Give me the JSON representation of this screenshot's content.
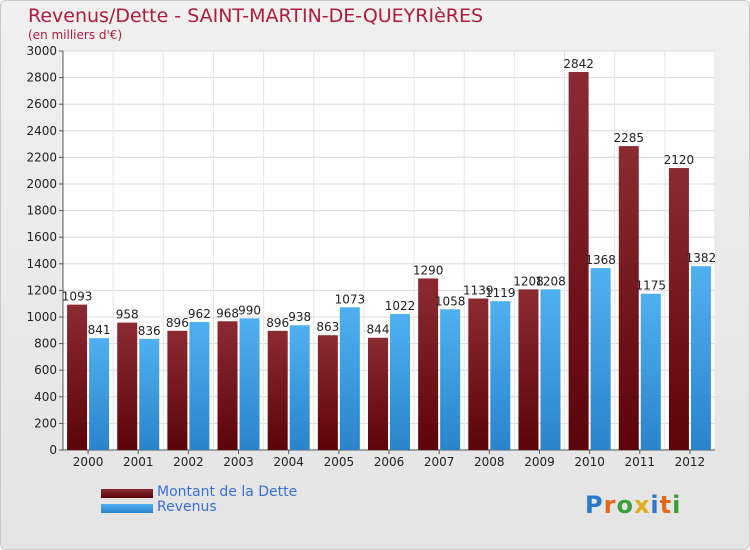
{
  "page": {
    "title": "Revenus/Dette - SAINT-MARTIN-DE-QUEYRIèRES",
    "subtitle": "(en milliers d'€)"
  },
  "legend": [
    {
      "label": "Montant de la Dette",
      "color": "#6b0e14"
    },
    {
      "label": "Revenus",
      "color": "#3d9ee6"
    }
  ],
  "logo": {
    "text": "Proxiti",
    "letters": [
      {
        "ch": "P",
        "color": "#2a78c8"
      },
      {
        "ch": "r",
        "color": "#e06a1a"
      },
      {
        "ch": "o",
        "color": "#3aa03a"
      },
      {
        "ch": "x",
        "color": "#e0b01a"
      },
      {
        "ch": "i",
        "color": "#2a78c8"
      },
      {
        "ch": "t",
        "color": "#e06a1a"
      },
      {
        "ch": "i",
        "color": "#3aa03a"
      }
    ]
  },
  "chart_data": {
    "type": "bar",
    "title": "Revenus/Dette - SAINT-MARTIN-DE-QUEYRIèRES",
    "subtitle": "(en milliers d'€)",
    "xlabel": "",
    "ylabel": "",
    "categories": [
      "2000",
      "2001",
      "2002",
      "2003",
      "2004",
      "2005",
      "2006",
      "2007",
      "2008",
      "2009",
      "2010",
      "2011",
      "2012"
    ],
    "series": [
      {
        "name": "Montant de la Dette",
        "color": "#6b0e14",
        "values": [
          1093,
          958,
          896,
          968,
          896,
          863,
          844,
          1290,
          1139,
          1208,
          2842,
          2285,
          2120
        ]
      },
      {
        "name": "Revenus",
        "color": "#3d9ee6",
        "values": [
          841,
          836,
          962,
          990,
          938,
          1073,
          1022,
          1058,
          1119,
          1208,
          1368,
          1175,
          1382
        ]
      }
    ],
    "ylim": [
      0,
      3000
    ],
    "yticks": [
      0,
      200,
      400,
      600,
      800,
      1000,
      1200,
      1400,
      1600,
      1800,
      2000,
      2200,
      2400,
      2600,
      2800,
      3000
    ],
    "grid": true,
    "legend_position": "bottom-left",
    "data_labels": true
  }
}
